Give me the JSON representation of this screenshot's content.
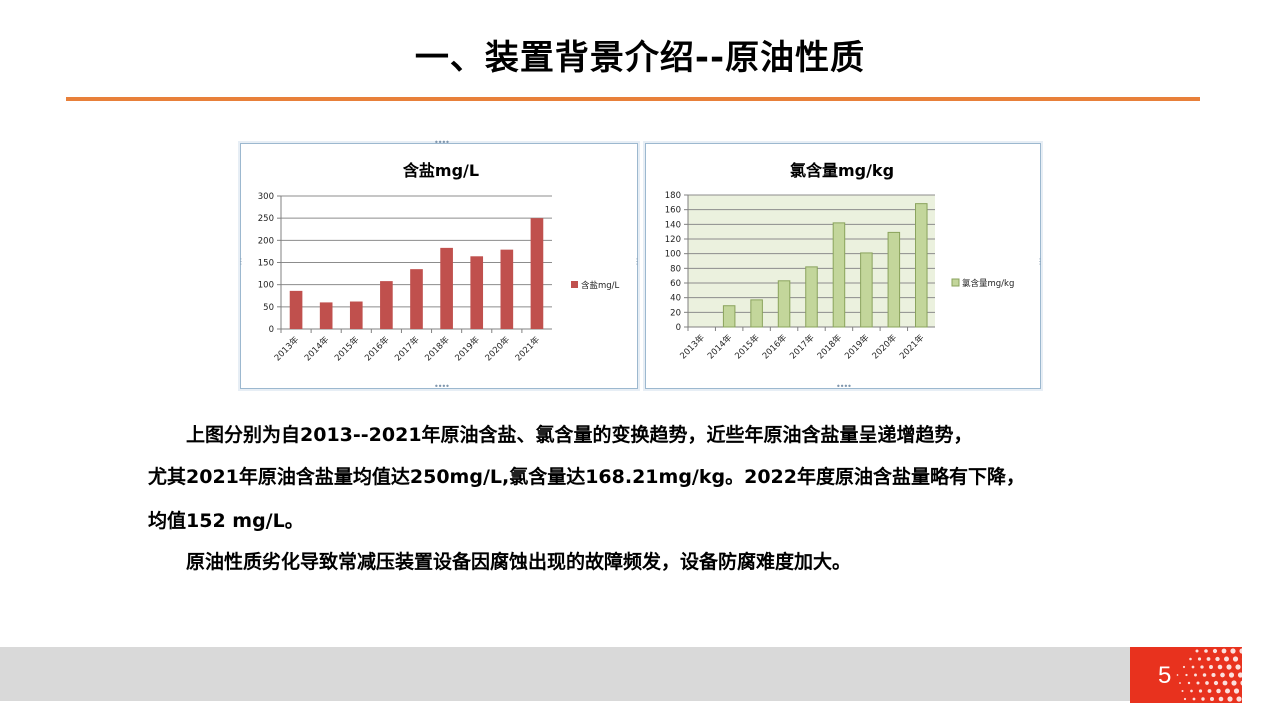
{
  "slide": {
    "title": "一、装置背景介绍--原油性质",
    "page_number": "5",
    "paragraphs": [
      "上图分别为自2013--2021年原油含盐、氯含量的变换趋势，近些年原油含盐量呈递增趋势，",
      "尤其2021年原油含盐量均值达250mg/L,氯含量达168.21mg/kg。2022年度原油含盐量略有下降，",
      "均值152 mg/L。",
      "原油性质劣化导致常减压装置设备因腐蚀出现的故障频发，设备防腐难度加大。"
    ]
  },
  "colors": {
    "accent_rule": "#e8803a",
    "salt_bar": "#c0504d",
    "chlorine_bar": "#c3d69b",
    "chlorine_bar_edge": "#8aa35c",
    "chlorine_plot_bg": "#ebf1de",
    "footer_gray": "#d9d9d9",
    "page_badge": "#e8321e"
  },
  "chart_data": [
    {
      "type": "bar",
      "title": "含盐mg/L",
      "categories": [
        "2013年",
        "2014年",
        "2015年",
        "2016年",
        "2017年",
        "2018年",
        "2019年",
        "2020年",
        "2021年"
      ],
      "series": [
        {
          "name": "含盐mg/L",
          "values": [
            86,
            60,
            62,
            108,
            135,
            183,
            164,
            179,
            250
          ]
        }
      ],
      "ylim": [
        0,
        300
      ],
      "yticks": [
        0,
        50,
        100,
        150,
        200,
        250,
        300
      ],
      "grid": true,
      "legend": "right"
    },
    {
      "type": "bar",
      "title": "氯含量mg/kg",
      "categories": [
        "2013年",
        "2014年",
        "2015年",
        "2016年",
        "2017年",
        "2018年",
        "2019年",
        "2020年",
        "2021年"
      ],
      "series": [
        {
          "name": "氯含量mg/kg",
          "values": [
            0,
            29,
            37,
            63,
            82,
            142,
            101,
            129,
            168.21
          ]
        }
      ],
      "ylim": [
        0,
        180
      ],
      "yticks": [
        0,
        20,
        40,
        60,
        80,
        100,
        120,
        140,
        160,
        180
      ],
      "grid": true,
      "legend": "right"
    }
  ]
}
